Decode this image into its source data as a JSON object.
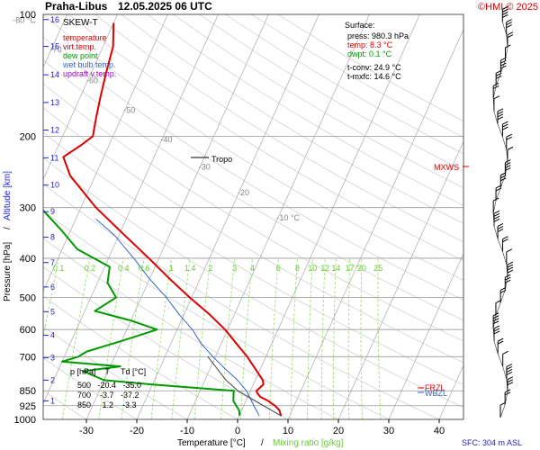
{
  "header": {
    "station": "Praha-Libus",
    "datetime": "12.05.2025 06 UTC",
    "copyright": "©HMI © 2025"
  },
  "legend": {
    "title": "SKEW-T",
    "items": [
      {
        "label": "temperature",
        "color": "#dd0000"
      },
      {
        "label": "virt.temp.",
        "color": "#dd0000"
      },
      {
        "label": "dew point",
        "color": "#009900"
      },
      {
        "label": "wet bulb temp.",
        "color": "#3366cc"
      },
      {
        "label": "updraft v.temp.",
        "color": "#9900cc"
      }
    ]
  },
  "surface": {
    "title": "Surface:",
    "press": "press: 980.3 hPa",
    "temp": "temp: 8.3 °C",
    "dwpt": "dwpt: 0.1 °C",
    "tconv": "t-conv: 24.9 °C",
    "tmxfc": "t-mxfc: 14.6 °C"
  },
  "table": {
    "header": "p [hPa]    T     Td [°C]",
    "rows": [
      "500   -20.4   -35.0",
      "700    -3.7   -37.2",
      "850     1.2    -3.3"
    ]
  },
  "labels": {
    "tropo": "Tropo",
    "mxws": "MXWS",
    "wbzl": "WBZL",
    "frzl": "FRZL",
    "sfc": "SFC: 304 m ASL",
    "xlabel_temp": "Temperature [°C]",
    "xlabel_sep": "/",
    "xlabel_mix": "Mixing ratio [g/kg]",
    "ylabel_p": "Pressure [hPa]",
    "ylabel_sep": "/",
    "ylabel_alt": "Altitude [km]"
  },
  "colors": {
    "temperature": "#dd0000",
    "dewpoint": "#009900",
    "wetbulb": "#3366cc",
    "altitude": "#2222cc",
    "mixing": "#66cc33",
    "isotherm": "#888888"
  },
  "chart_data": {
    "type": "line",
    "title": "SKEW-T",
    "xlabel": "Temperature [°C]",
    "ylabel": "Pressure [hPa]",
    "xlim": [
      -35,
      45
    ],
    "ylim": [
      1000,
      100
    ],
    "y_scale": "log",
    "grid": true,
    "x_ticks": [
      -30,
      -20,
      -10,
      0,
      10,
      20,
      30,
      40
    ],
    "pressure_ticks": [
      100,
      200,
      300,
      400,
      500,
      600,
      700,
      850,
      925,
      1000
    ],
    "altitude_ticks": [
      {
        "km": 1,
        "p": 900
      },
      {
        "km": 2,
        "p": 800
      },
      {
        "km": 3,
        "p": 705
      },
      {
        "km": 4,
        "p": 620
      },
      {
        "km": 5,
        "p": 542
      },
      {
        "km": 6,
        "p": 471
      },
      {
        "km": 7,
        "p": 410
      },
      {
        "km": 8,
        "p": 355
      },
      {
        "km": 9,
        "p": 307
      },
      {
        "km": 10,
        "p": 264
      },
      {
        "km": 11,
        "p": 226
      },
      {
        "km": 12,
        "p": 193
      },
      {
        "km": 13,
        "p": 165
      },
      {
        "km": 14,
        "p": 141
      },
      {
        "km": 15,
        "p": 120
      },
      {
        "km": 16,
        "p": 103
      }
    ],
    "isotherm_labels": [
      {
        "t": -80,
        "p": 105,
        "text": "-80 °C"
      },
      {
        "t": -70,
        "p": 124,
        "text": "-70"
      },
      {
        "t": -60,
        "p": 148,
        "text": "-60"
      },
      {
        "t": -50,
        "p": 175,
        "text": "-50"
      },
      {
        "t": -40,
        "p": 207,
        "text": "-40"
      },
      {
        "t": -30,
        "p": 242,
        "text": "-30"
      },
      {
        "t": -20,
        "p": 280,
        "text": "-20"
      },
      {
        "t": -10,
        "p": 323,
        "text": "-10 °C"
      }
    ],
    "mixing_ratio_labels": [
      "0.1",
      "0.2",
      "0.4",
      "0.6",
      "1",
      "1.4",
      "2",
      "3",
      "4",
      "6",
      "8",
      "10",
      "12",
      "14",
      "17",
      "20",
      "25"
    ],
    "series": [
      {
        "name": "temperature",
        "color": "#dd0000",
        "points": [
          {
            "p": 980,
            "t": 8.3
          },
          {
            "p": 950,
            "t": 7.5
          },
          {
            "p": 925,
            "t": 6.2
          },
          {
            "p": 900,
            "t": 4.4
          },
          {
            "p": 880,
            "t": 2.5
          },
          {
            "p": 860,
            "t": 1.5
          },
          {
            "p": 850,
            "t": 1.2
          },
          {
            "p": 820,
            "t": 2.0
          },
          {
            "p": 800,
            "t": 1.5
          },
          {
            "p": 750,
            "t": -1.0
          },
          {
            "p": 700,
            "t": -3.7
          },
          {
            "p": 650,
            "t": -7.0
          },
          {
            "p": 600,
            "t": -10.5
          },
          {
            "p": 550,
            "t": -15.0
          },
          {
            "p": 500,
            "t": -20.4
          },
          {
            "p": 450,
            "t": -26.0
          },
          {
            "p": 400,
            "t": -32.0
          },
          {
            "p": 350,
            "t": -39.0
          },
          {
            "p": 300,
            "t": -47.0
          },
          {
            "p": 250,
            "t": -55.0
          },
          {
            "p": 225,
            "t": -58.0
          },
          {
            "p": 210,
            "t": -55.5
          },
          {
            "p": 200,
            "t": -54.0
          },
          {
            "p": 180,
            "t": -55.0
          },
          {
            "p": 160,
            "t": -56.0
          },
          {
            "p": 140,
            "t": -57.0
          },
          {
            "p": 120,
            "t": -58.0
          },
          {
            "p": 105,
            "t": -60.0
          }
        ]
      },
      {
        "name": "dew point",
        "color": "#009900",
        "points": [
          {
            "p": 980,
            "t": 0.1
          },
          {
            "p": 950,
            "t": -0.5
          },
          {
            "p": 925,
            "t": -1.5
          },
          {
            "p": 900,
            "t": -2.5
          },
          {
            "p": 870,
            "t": -3.0
          },
          {
            "p": 850,
            "t": -3.3
          },
          {
            "p": 820,
            "t": -20.0
          },
          {
            "p": 800,
            "t": -30.0
          },
          {
            "p": 760,
            "t": -35.0
          },
          {
            "p": 740,
            "t": -28.0
          },
          {
            "p": 720,
            "t": -40.0
          },
          {
            "p": 700,
            "t": -37.2
          },
          {
            "p": 680,
            "t": -36.0
          },
          {
            "p": 640,
            "t": -30.0
          },
          {
            "p": 600,
            "t": -24.0
          },
          {
            "p": 570,
            "t": -30.0
          },
          {
            "p": 540,
            "t": -38.0
          },
          {
            "p": 500,
            "t": -35.0
          },
          {
            "p": 460,
            "t": -38.0
          },
          {
            "p": 420,
            "t": -39.0
          },
          {
            "p": 380,
            "t": -47.0
          },
          {
            "p": 340,
            "t": -52.0
          },
          {
            "p": 300,
            "t": -58.0
          },
          {
            "p": 260,
            "t": -66.0
          },
          {
            "p": 230,
            "t": -74.0
          },
          {
            "p": 205,
            "t": -80.0
          },
          {
            "p": 190,
            "t": -85.0
          },
          {
            "p": 160,
            "t": -85.0
          },
          {
            "p": 140,
            "t": -86.0
          },
          {
            "p": 120,
            "t": -86.0
          },
          {
            "p": 105,
            "t": -85.0
          }
        ]
      },
      {
        "name": "wet bulb temp.",
        "color": "#3366cc",
        "points": [
          {
            "p": 980,
            "t": 4.0
          },
          {
            "p": 925,
            "t": 2.0
          },
          {
            "p": 850,
            "t": -0.8
          },
          {
            "p": 800,
            "t": -3.5
          },
          {
            "p": 750,
            "t": -7.0
          },
          {
            "p": 700,
            "t": -10.5
          },
          {
            "p": 650,
            "t": -14.0
          },
          {
            "p": 600,
            "t": -17.0
          },
          {
            "p": 550,
            "t": -21.0
          },
          {
            "p": 500,
            "t": -25.0
          },
          {
            "p": 450,
            "t": -30.0
          },
          {
            "p": 400,
            "t": -35.0
          },
          {
            "p": 350,
            "t": -41.0
          },
          {
            "p": 320,
            "t": -46.0
          }
        ]
      },
      {
        "name": "updraft v.temp.",
        "color": "#444444",
        "points": [
          {
            "p": 980,
            "t": 8.3
          },
          {
            "p": 850,
            "t": -2.5
          },
          {
            "p": 800,
            "t": -5.8
          },
          {
            "p": 700,
            "t": -11.5
          }
        ]
      }
    ]
  }
}
